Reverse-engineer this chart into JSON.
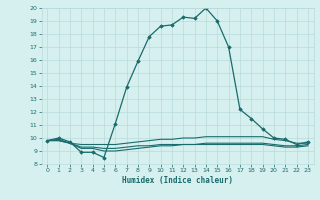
{
  "xlabel": "Humidex (Indice chaleur)",
  "bg_color": "#d6f0f0",
  "grid_color": "#b8dada",
  "line_color": "#1a6b6b",
  "xlim": [
    -0.5,
    23.5
  ],
  "ylim": [
    8,
    20
  ],
  "xticks": [
    0,
    1,
    2,
    3,
    4,
    5,
    6,
    7,
    8,
    9,
    10,
    11,
    12,
    13,
    14,
    15,
    16,
    17,
    18,
    19,
    20,
    21,
    22,
    23
  ],
  "yticks": [
    8,
    9,
    10,
    11,
    12,
    13,
    14,
    15,
    16,
    17,
    18,
    19,
    20
  ],
  "line1_x": [
    0,
    1,
    2,
    3,
    4,
    5,
    6,
    7,
    8,
    9,
    10,
    11,
    12,
    13,
    14,
    15,
    16,
    17,
    18,
    19,
    20,
    21,
    22,
    23
  ],
  "line1_y": [
    9.8,
    10.0,
    9.7,
    8.9,
    8.9,
    8.5,
    11.1,
    13.9,
    15.9,
    17.8,
    18.6,
    18.7,
    19.3,
    19.2,
    20.0,
    19.0,
    17.0,
    12.2,
    11.5,
    10.7,
    10.0,
    9.9,
    9.5,
    9.7
  ],
  "line2_x": [
    0,
    1,
    2,
    3,
    4,
    5,
    6,
    7,
    8,
    9,
    10,
    11,
    12,
    13,
    14,
    15,
    16,
    17,
    18,
    19,
    20,
    21,
    22,
    23
  ],
  "line2_y": [
    9.8,
    9.9,
    9.6,
    9.5,
    9.5,
    9.5,
    9.5,
    9.6,
    9.7,
    9.8,
    9.9,
    9.9,
    10.0,
    10.0,
    10.1,
    10.1,
    10.1,
    10.1,
    10.1,
    10.1,
    9.9,
    9.8,
    9.6,
    9.6
  ],
  "line3_x": [
    0,
    1,
    2,
    3,
    4,
    5,
    6,
    7,
    8,
    9,
    10,
    11,
    12,
    13,
    14,
    15,
    16,
    17,
    18,
    19,
    20,
    21,
    22,
    23
  ],
  "line3_y": [
    9.8,
    9.8,
    9.6,
    9.3,
    9.3,
    9.2,
    9.2,
    9.3,
    9.4,
    9.4,
    9.5,
    9.5,
    9.5,
    9.5,
    9.6,
    9.6,
    9.6,
    9.6,
    9.6,
    9.6,
    9.5,
    9.4,
    9.4,
    9.5
  ],
  "line4_x": [
    0,
    1,
    2,
    3,
    4,
    5,
    6,
    7,
    8,
    9,
    10,
    11,
    12,
    13,
    14,
    15,
    16,
    17,
    18,
    19,
    20,
    21,
    22,
    23
  ],
  "line4_y": [
    9.8,
    9.8,
    9.6,
    9.2,
    9.2,
    9.0,
    9.0,
    9.1,
    9.2,
    9.3,
    9.4,
    9.4,
    9.5,
    9.5,
    9.5,
    9.5,
    9.5,
    9.5,
    9.5,
    9.5,
    9.4,
    9.3,
    9.3,
    9.4
  ]
}
